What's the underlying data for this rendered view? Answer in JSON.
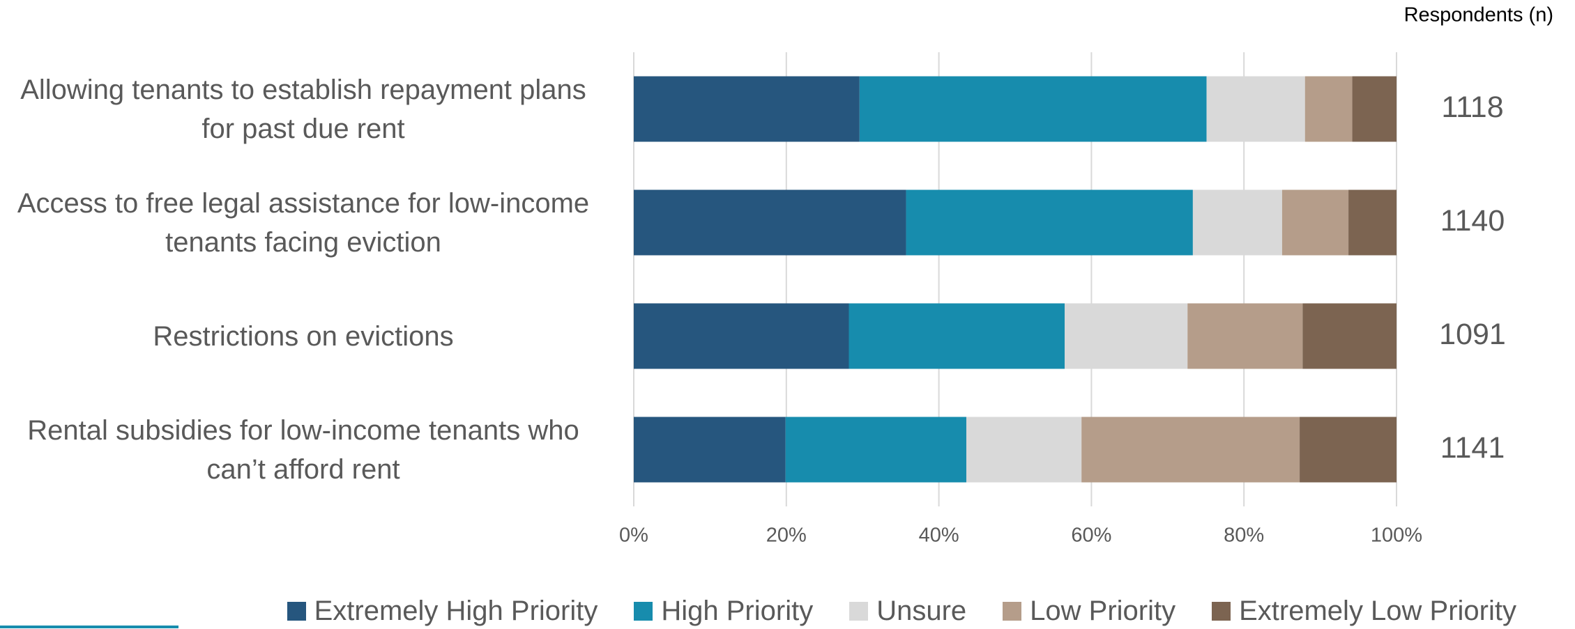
{
  "chart_data": {
    "type": "stacked-barh",
    "categories": [
      "Allowing tenants to establish repayment plans for past due rent",
      "Access to free legal assistance for low-income tenants facing eviction",
      "Restrictions on evictions",
      "Rental subsidies for low-income tenants who can’t afford rent"
    ],
    "series": [
      {
        "name": "Extremely High Priority",
        "color": "#26567e",
        "values": [
          29.6,
          35.7,
          28.2,
          19.9
        ]
      },
      {
        "name": "High Priority",
        "color": "#178cad",
        "values": [
          45.5,
          37.6,
          28.3,
          23.7
        ]
      },
      {
        "name": "Unsure",
        "color": "#d9d9d9",
        "values": [
          12.9,
          11.7,
          16.1,
          15.1
        ]
      },
      {
        "name": "Low Priority",
        "color": "#b59d8a",
        "values": [
          6.2,
          8.7,
          15.1,
          28.6
        ]
      },
      {
        "name": "Extremely Low Priority",
        "color": "#7c6451",
        "values": [
          5.8,
          6.3,
          12.3,
          12.7
        ]
      }
    ],
    "respondents_label": "Respondents (n)",
    "respondents": [
      1118,
      1140,
      1091,
      1141
    ],
    "xlim": [
      0,
      100
    ],
    "xticks": [
      {
        "value": 0,
        "label": "0%"
      },
      {
        "value": 20,
        "label": "20%"
      },
      {
        "value": 40,
        "label": "40%"
      },
      {
        "value": 60,
        "label": "60%"
      },
      {
        "value": 80,
        "label": "80%"
      },
      {
        "value": 100,
        "label": "100%"
      }
    ],
    "grid": true
  }
}
